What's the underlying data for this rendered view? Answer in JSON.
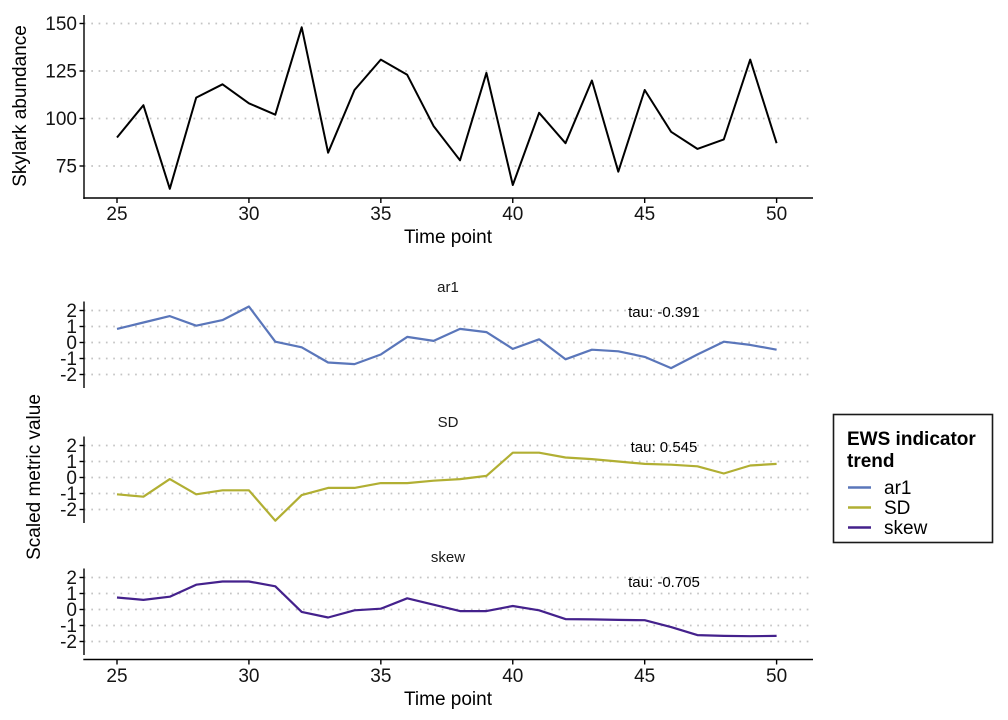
{
  "labels": {
    "top_ylabel": "Skylark abundance",
    "top_xlabel": "Time point",
    "facet_ylabel": "Scaled metric value",
    "facet_xlabel": "Time point"
  },
  "legend": {
    "title": "EWS indicator trend",
    "title_lines": [
      "EWS indicator",
      "trend"
    ],
    "items": [
      {
        "label": "ar1",
        "color": "#5A76BA"
      },
      {
        "label": "SD",
        "color": "#B1AF33"
      },
      {
        "label": "skew",
        "color": "#44218C"
      }
    ]
  },
  "chart_data": [
    {
      "type": "line",
      "title": "",
      "ylabel": "Skylark abundance",
      "xlabel": "Time point",
      "color": "#000000",
      "grid": "dotted horizontal",
      "xticks": [
        25,
        30,
        35,
        40,
        45,
        50
      ],
      "yticks": [
        75,
        100,
        125,
        150
      ],
      "xlim": [
        23.7,
        51.4
      ],
      "ylim": [
        58,
        155
      ],
      "x": [
        25,
        26,
        27,
        28,
        29,
        30,
        31,
        32,
        33,
        34,
        35,
        36,
        37,
        38,
        39,
        40,
        41,
        42,
        43,
        44,
        45,
        46,
        47,
        48,
        49,
        50
      ],
      "values": [
        90,
        107,
        63,
        111,
        118,
        108,
        102,
        148,
        82,
        115,
        131,
        123,
        96,
        78,
        124,
        65,
        103,
        87,
        120,
        72,
        115,
        93,
        84,
        89,
        131,
        87
      ]
    },
    {
      "type": "line",
      "title": "ar1",
      "tau_label": "tau: -0.391",
      "tau": -0.391,
      "ylabel": "Scaled metric value",
      "color": "#5A76BA",
      "grid": "dotted horizontal",
      "xticks": [
        25,
        30,
        35,
        40,
        45,
        50
      ],
      "yticks": [
        -2,
        -1,
        0,
        1,
        2
      ],
      "xlim": [
        23.7,
        51.4
      ],
      "ylim": [
        -2.8,
        2.7
      ],
      "x": [
        25,
        26,
        27,
        28,
        29,
        30,
        31,
        32,
        33,
        34,
        35,
        36,
        37,
        38,
        39,
        40,
        41,
        42,
        43,
        44,
        45,
        46,
        47,
        48,
        49,
        50
      ],
      "values": [
        0.85,
        1.25,
        1.65,
        1.05,
        1.4,
        2.25,
        0.05,
        -0.3,
        -1.25,
        -1.35,
        -0.75,
        0.35,
        0.1,
        0.85,
        0.65,
        -0.4,
        0.2,
        -1.05,
        -0.45,
        -0.55,
        -0.9,
        -1.6,
        -0.75,
        0.05,
        -0.15,
        -0.45
      ]
    },
    {
      "type": "line",
      "title": "SD",
      "tau_label": "tau: 0.545",
      "tau": 0.545,
      "ylabel": "Scaled metric value",
      "color": "#B1AF33",
      "grid": "dotted horizontal",
      "xticks": [
        25,
        30,
        35,
        40,
        45,
        50
      ],
      "yticks": [
        -2,
        -1,
        0,
        1,
        2
      ],
      "xlim": [
        23.7,
        51.4
      ],
      "ylim": [
        -2.8,
        2.7
      ],
      "x": [
        25,
        26,
        27,
        28,
        29,
        30,
        31,
        32,
        33,
        34,
        35,
        36,
        37,
        38,
        39,
        40,
        41,
        42,
        43,
        44,
        45,
        46,
        47,
        48,
        49,
        50
      ],
      "values": [
        -1.05,
        -1.2,
        -0.1,
        -1.05,
        -0.8,
        -0.8,
        -2.7,
        -1.1,
        -0.65,
        -0.65,
        -0.35,
        -0.35,
        -0.2,
        -0.1,
        0.1,
        1.55,
        1.55,
        1.25,
        1.15,
        1.0,
        0.85,
        0.8,
        0.7,
        0.25,
        0.75,
        0.85
      ]
    },
    {
      "type": "line",
      "title": "skew",
      "tau_label": "tau: -0.705",
      "tau": -0.705,
      "ylabel": "Scaled metric value",
      "xlabel": "Time point",
      "color": "#44218C",
      "grid": "dotted horizontal",
      "xticks": [
        25,
        30,
        35,
        40,
        45,
        50
      ],
      "yticks": [
        -2,
        -1,
        0,
        1,
        2
      ],
      "xlim": [
        23.7,
        51.4
      ],
      "ylim": [
        -2.8,
        2.7
      ],
      "x": [
        25,
        26,
        27,
        28,
        29,
        30,
        31,
        32,
        33,
        34,
        35,
        36,
        37,
        38,
        39,
        40,
        41,
        42,
        43,
        44,
        45,
        46,
        47,
        48,
        49,
        50
      ],
      "values": [
        0.75,
        0.6,
        0.8,
        1.55,
        1.75,
        1.75,
        1.45,
        -0.15,
        -0.5,
        -0.05,
        0.05,
        0.7,
        0.3,
        -0.1,
        -0.1,
        0.22,
        -0.05,
        -0.6,
        -0.62,
        -0.65,
        -0.67,
        -1.1,
        -1.6,
        -1.65,
        -1.67,
        -1.65
      ]
    }
  ]
}
